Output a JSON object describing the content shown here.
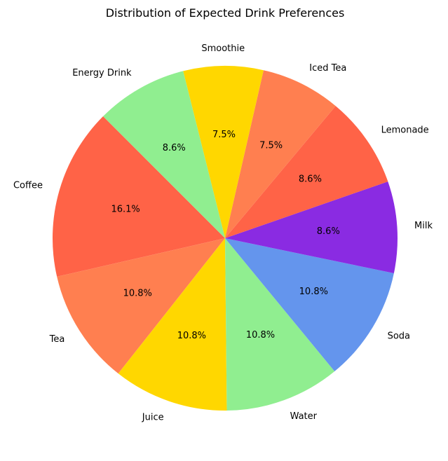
{
  "chart_data": {
    "type": "pie",
    "title": "Distribution of Expected Drink Preferences",
    "start_angle_deg": 135,
    "direction": "counterclockwise",
    "slices": [
      {
        "label": "Coffee",
        "value": 16.1,
        "pct_label": "16.1%",
        "color": "#FF6347"
      },
      {
        "label": "Tea",
        "value": 10.8,
        "pct_label": "10.8%",
        "color": "#FF7F50"
      },
      {
        "label": "Juice",
        "value": 10.8,
        "pct_label": "10.8%",
        "color": "#FFD700"
      },
      {
        "label": "Water",
        "value": 10.8,
        "pct_label": "10.8%",
        "color": "#90EE90"
      },
      {
        "label": "Soda",
        "value": 10.8,
        "pct_label": "10.8%",
        "color": "#6495ED"
      },
      {
        "label": "Milk",
        "value": 8.6,
        "pct_label": "8.6%",
        "color": "#8A2BE2"
      },
      {
        "label": "Lemonade",
        "value": 8.6,
        "pct_label": "8.6%",
        "color": "#FF6347"
      },
      {
        "label": "Iced Tea",
        "value": 7.5,
        "pct_label": "7.5%",
        "color": "#FF7F50"
      },
      {
        "label": "Smoothie",
        "value": 7.5,
        "pct_label": "7.5%",
        "color": "#FFD700"
      },
      {
        "label": "Energy Drink",
        "value": 8.6,
        "pct_label": "8.6%",
        "color": "#90EE90"
      }
    ]
  }
}
